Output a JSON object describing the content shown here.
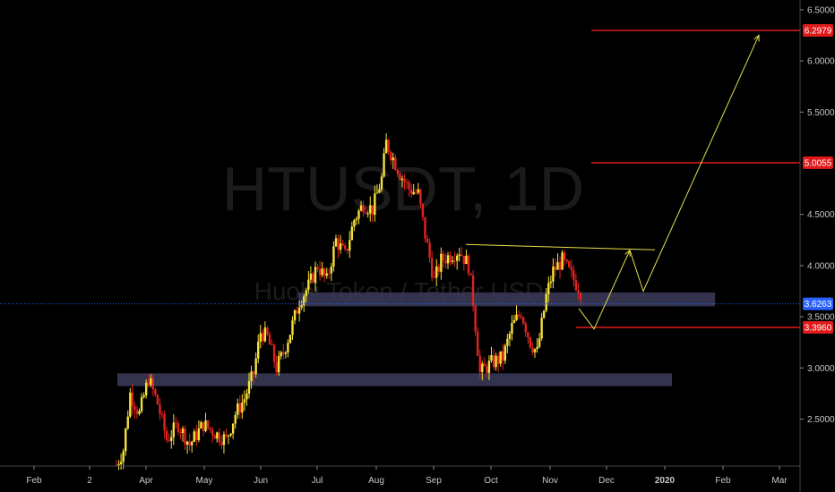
{
  "chart_data": {
    "type": "candlestick",
    "symbol_watermark": "HTUSDT, 1D",
    "subtitle_watermark": "Huobi Token / Tether USD",
    "y_axis": {
      "min": 2.05,
      "max": 6.55,
      "scale": "linear",
      "ticks": [
        "6.5000",
        "6.0000",
        "5.5000",
        "4.5000",
        "4.0000",
        "3.5000",
        "3.0000",
        "2.5000"
      ],
      "tick_values": [
        6.5,
        6.0,
        5.5,
        4.5,
        4.0,
        3.5,
        3.0,
        2.5
      ]
    },
    "x_axis": {
      "labels": [
        "Feb",
        "2",
        "Apr",
        "May",
        "Jun",
        "Jul",
        "Aug",
        "Sep",
        "Oct",
        "Nov",
        "Dec",
        "2020",
        "Feb",
        "Mar"
      ],
      "label_months": [
        "2019-02",
        "2019-03",
        "2019-04",
        "2019-05",
        "2019-06",
        "2019-07",
        "2019-08",
        "2019-09",
        "2019-10",
        "2019-11",
        "2019-12",
        "2020-01",
        "2020-02",
        "2020-03"
      ]
    },
    "current_price": {
      "value": 3.6263,
      "label": "3.6263",
      "color": "#2962ff"
    },
    "price_levels": [
      {
        "value": 6.2979,
        "label": "6.2979"
      },
      {
        "value": 5.0055,
        "label": "5.0055"
      },
      {
        "value": 3.396,
        "label": "3.3960"
      }
    ],
    "zones": [
      {
        "from": "2019-07",
        "to": "2020-01",
        "low": 3.62,
        "high": 3.72
      },
      {
        "from": "2019-03",
        "to": "2020-01",
        "low": 2.84,
        "high": 2.93
      }
    ],
    "projection_path": [
      [
        3.38,
        0
      ],
      [
        4.15,
        1
      ],
      [
        3.75,
        2
      ],
      [
        6.25,
        3
      ]
    ],
    "resistance_line": {
      "value": 4.18
    },
    "price_series": [
      [
        2.05,
        0
      ],
      [
        2.2,
        3
      ],
      [
        2.75,
        6
      ],
      [
        2.55,
        10
      ],
      [
        2.9,
        14
      ],
      [
        2.65,
        18
      ],
      [
        2.3,
        22
      ],
      [
        2.45,
        27
      ],
      [
        2.25,
        32
      ],
      [
        2.45,
        38
      ],
      [
        2.35,
        44
      ],
      [
        2.3,
        48
      ],
      [
        2.55,
        52
      ],
      [
        2.7,
        56
      ],
      [
        2.95,
        60
      ],
      [
        3.35,
        63
      ],
      [
        3.3,
        66
      ],
      [
        3.0,
        70
      ],
      [
        3.15,
        73
      ],
      [
        3.35,
        76
      ],
      [
        3.65,
        80
      ],
      [
        3.8,
        84
      ],
      [
        4.0,
        88
      ],
      [
        3.85,
        92
      ],
      [
        4.25,
        96
      ],
      [
        4.1,
        100
      ],
      [
        4.45,
        104
      ],
      [
        4.6,
        108
      ],
      [
        4.55,
        112
      ],
      [
        4.85,
        116
      ],
      [
        5.2,
        118
      ],
      [
        5.05,
        121
      ],
      [
        4.9,
        124
      ],
      [
        4.75,
        128
      ],
      [
        4.7,
        132
      ],
      [
        4.3,
        135
      ],
      [
        3.85,
        139
      ],
      [
        4.05,
        142
      ],
      [
        4.1,
        146
      ],
      [
        4.15,
        150
      ],
      [
        4.0,
        154
      ],
      [
        3.65,
        156
      ],
      [
        2.95,
        159
      ],
      [
        3.05,
        164
      ],
      [
        3.1,
        169
      ],
      [
        3.4,
        173
      ],
      [
        3.55,
        177
      ],
      [
        3.25,
        181
      ],
      [
        3.15,
        184
      ],
      [
        3.7,
        188
      ],
      [
        3.95,
        191
      ],
      [
        4.05,
        195
      ],
      [
        3.9,
        199
      ],
      [
        3.75,
        203
      ]
    ],
    "up_color": "#f5e13a",
    "down_color": "#e0231f",
    "level_color": "#e01a1a",
    "zone_color": "#3c3c5a",
    "projection_color": "#e6e04a",
    "grid": false
  }
}
